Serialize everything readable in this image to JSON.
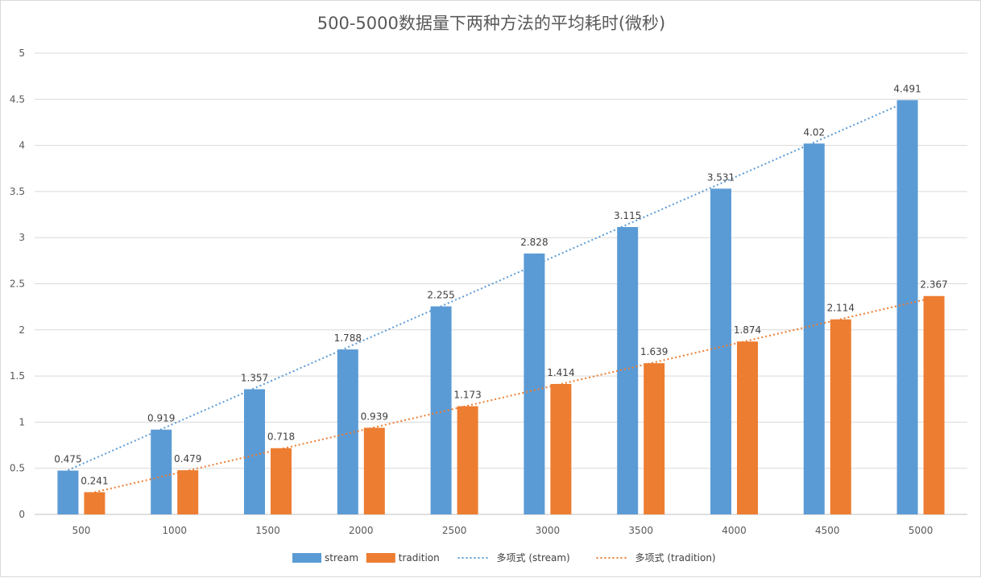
{
  "chart_data": {
    "type": "bar",
    "title": "500-5000数据量下两种方法的平均耗时(微秒)",
    "xlabel": "",
    "ylabel": "",
    "categories": [
      "500",
      "1000",
      "1500",
      "2000",
      "2500",
      "3000",
      "3500",
      "4000",
      "4500",
      "5000"
    ],
    "series": [
      {
        "name": "stream",
        "color": "#5B9BD5",
        "values": [
          0.475,
          0.919,
          1.357,
          1.788,
          2.255,
          2.828,
          3.115,
          3.531,
          4.02,
          4.491
        ],
        "labels": [
          "0.475",
          "0.919",
          "1.357",
          "1.788",
          "2.255",
          "2.828",
          "3.115",
          "3.531",
          "4.02",
          "4.491"
        ]
      },
      {
        "name": "tradition",
        "color": "#ED7D31",
        "values": [
          0.241,
          0.479,
          0.718,
          0.939,
          1.173,
          1.414,
          1.639,
          1.874,
          2.114,
          2.367
        ],
        "labels": [
          "0.241",
          "0.479",
          "0.718",
          "0.939",
          "1.173",
          "1.414",
          "1.639",
          "1.874",
          "2.114",
          "2.367"
        ]
      }
    ],
    "trendlines": [
      {
        "name": "多项式 (stream)",
        "series": "stream",
        "type": "polynomial",
        "color": "#5B9BD5"
      },
      {
        "name": "多项式 (tradition)",
        "series": "tradition",
        "type": "polynomial",
        "color": "#ED7D31"
      }
    ],
    "ylim": [
      0,
      5
    ],
    "yticks": [
      "0",
      "0.5",
      "1",
      "1.5",
      "2",
      "2.5",
      "3",
      "3.5",
      "4",
      "4.5",
      "5"
    ],
    "grid": true,
    "legend_position": "bottom"
  }
}
